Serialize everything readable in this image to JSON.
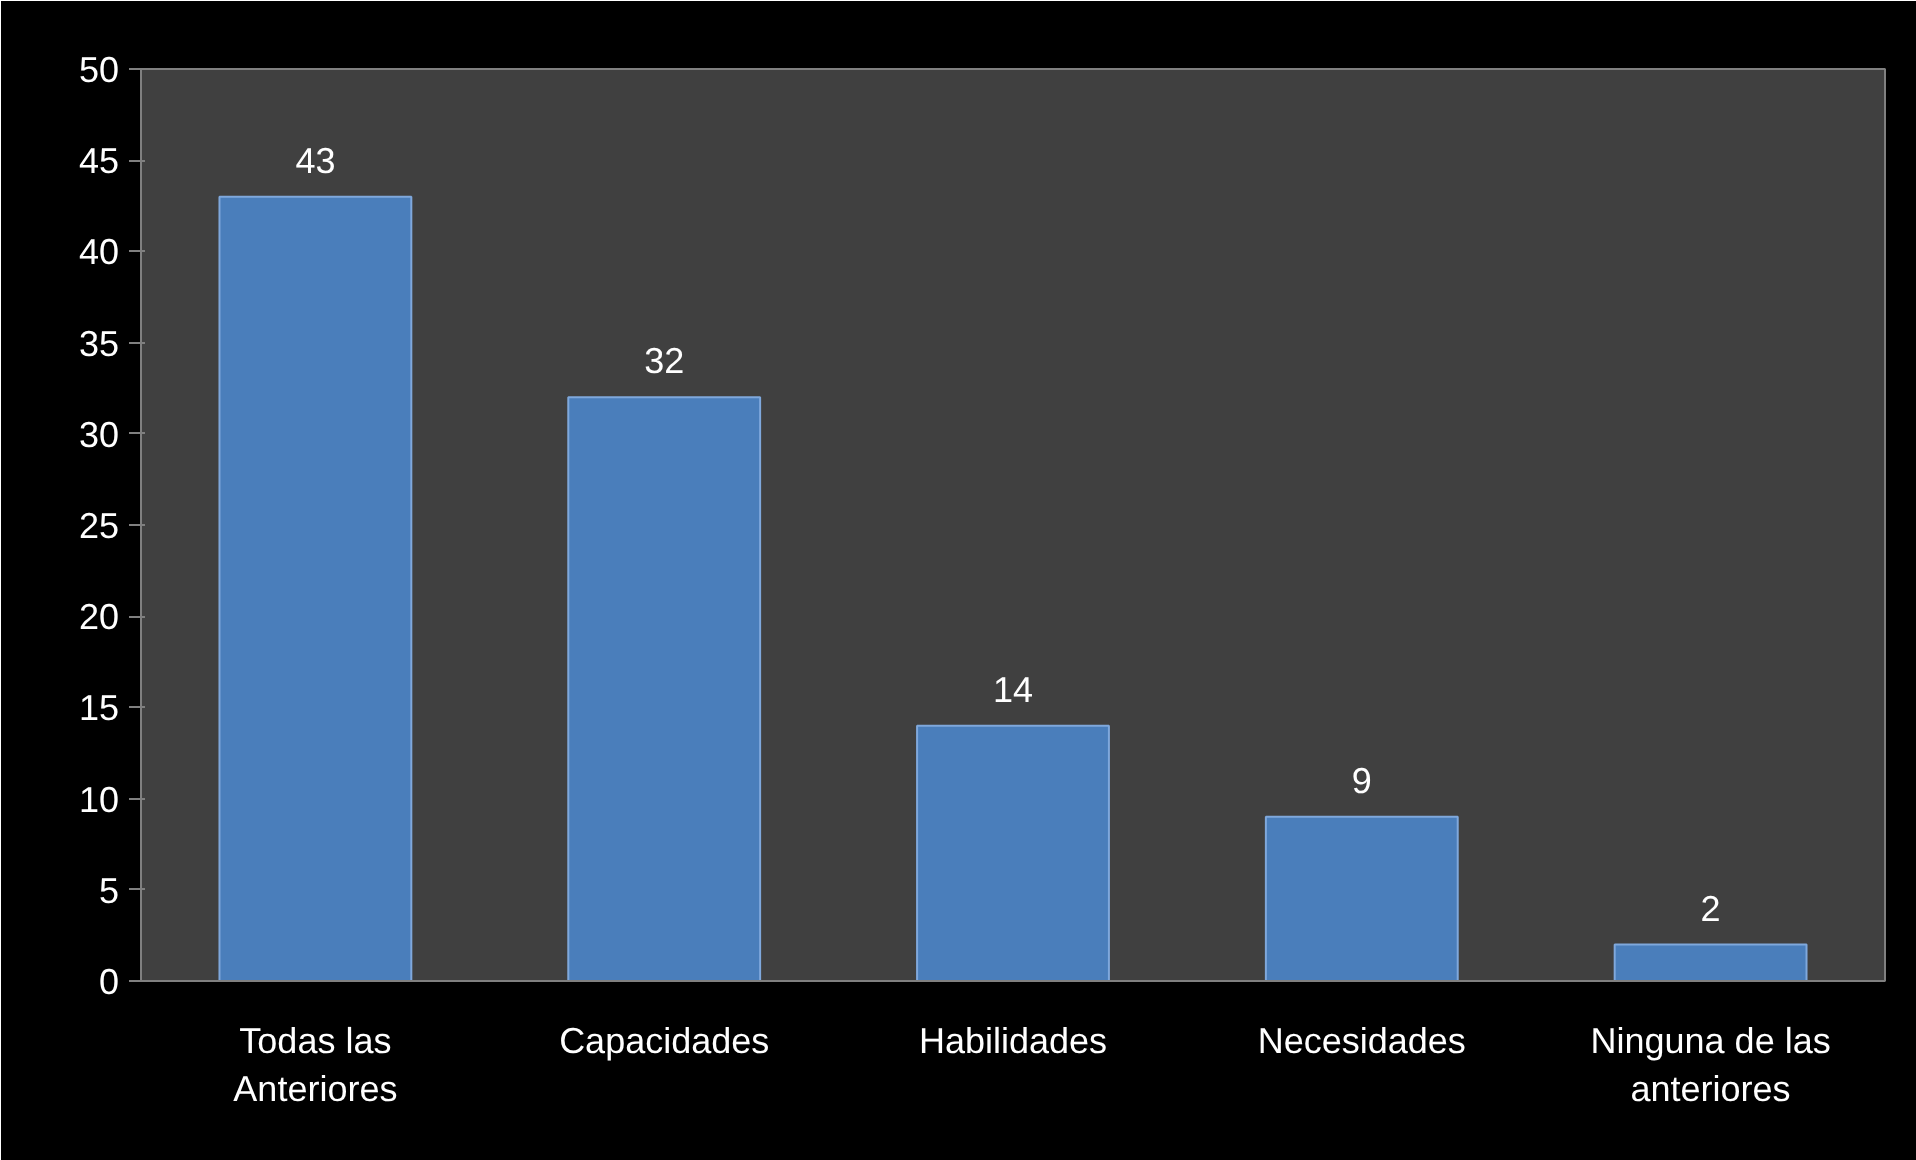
{
  "chart_data": {
    "type": "bar",
    "categories": [
      "Todas las\nAnteriores",
      "Capacidades",
      "Habilidades",
      "Necesidades",
      "Ninguna de las\nanteriores"
    ],
    "values": [
      43,
      32,
      14,
      9,
      2
    ],
    "color": "#4a7ebb",
    "ylim": [
      0,
      50
    ],
    "yticks": [
      0,
      5,
      10,
      15,
      20,
      25,
      30,
      35,
      40,
      45,
      50
    ],
    "grid": false,
    "data_labels": true
  }
}
